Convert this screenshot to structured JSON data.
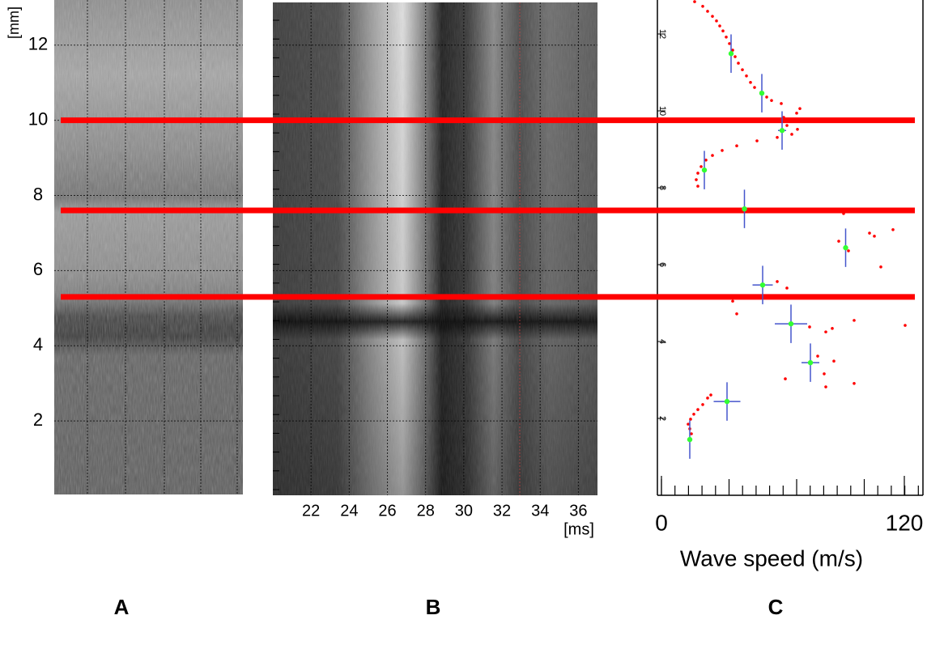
{
  "depth_axis": {
    "label": "[mm]",
    "ylim": [
      0,
      13.2
    ],
    "yticks": [
      2,
      4,
      6,
      8,
      10,
      12
    ]
  },
  "time_axis": {
    "label": "[ms]",
    "xlim": [
      20,
      37
    ],
    "xticks": [
      22,
      24,
      26,
      28,
      30,
      32,
      34,
      36
    ]
  },
  "boundaries": [
    10,
    7.6,
    5.3
  ],
  "speed_chart": {
    "xlabel": "Wave speed (m/s)",
    "xlim": [
      0,
      120
    ],
    "xticks": [
      0,
      120
    ],
    "ylim": [
      0,
      12.9
    ],
    "yticks": [
      2,
      4,
      6,
      8,
      10,
      12
    ],
    "point_color": "#ff0000",
    "estimate_color": "#33ff33",
    "error_color": "#4455cc",
    "points": [
      [
        16.4,
        12.84
      ],
      [
        20.4,
        12.72
      ],
      [
        22.8,
        12.59
      ],
      [
        25.2,
        12.46
      ],
      [
        27.2,
        12.34
      ],
      [
        28.8,
        12.21
      ],
      [
        30.4,
        12.08
      ],
      [
        32,
        11.92
      ],
      [
        33.6,
        11.75
      ],
      [
        35.2,
        11.58
      ],
      [
        36.4,
        11.41
      ],
      [
        38,
        11.24
      ],
      [
        40,
        11.07
      ],
      [
        42,
        10.91
      ],
      [
        44,
        10.74
      ],
      [
        46,
        10.61
      ],
      [
        49.2,
        10.48
      ],
      [
        52,
        10.36
      ],
      [
        54.4,
        10.27
      ],
      [
        59.2,
        10.19
      ],
      [
        68.4,
        10.06
      ],
      [
        66.8,
        9.94
      ],
      [
        60.4,
        9.83
      ],
      [
        56.4,
        9.73
      ],
      [
        62,
        9.62
      ],
      [
        67.2,
        9.52
      ],
      [
        64.4,
        9.39
      ],
      [
        57.2,
        9.31
      ],
      [
        47.2,
        9.22
      ],
      [
        37.2,
        9.09
      ],
      [
        30,
        8.97
      ],
      [
        25.2,
        8.84
      ],
      [
        22,
        8.72
      ],
      [
        19.6,
        8.55
      ],
      [
        18,
        8.38
      ],
      [
        17.2,
        8.21
      ],
      [
        18,
        8.04
      ],
      [
        90,
        7.33
      ],
      [
        102.8,
        6.82
      ],
      [
        105.2,
        6.74
      ],
      [
        114.4,
        6.91
      ],
      [
        87.6,
        6.61
      ],
      [
        92.4,
        6.36
      ],
      [
        108.4,
        5.94
      ],
      [
        57.2,
        5.56
      ],
      [
        62,
        5.39
      ],
      [
        49.2,
        5.14
      ],
      [
        35.2,
        5.05
      ],
      [
        37.2,
        4.72
      ],
      [
        95.2,
        4.55
      ],
      [
        120.4,
        4.42
      ],
      [
        73.2,
        4.38
      ],
      [
        81.2,
        4.25
      ],
      [
        84.4,
        4.34
      ],
      [
        77.2,
        3.62
      ],
      [
        85.2,
        3.49
      ],
      [
        61.2,
        3.03
      ],
      [
        80.4,
        3.16
      ],
      [
        81.2,
        2.82
      ],
      [
        95.2,
        2.91
      ],
      [
        24.4,
        2.61
      ],
      [
        22.8,
        2.53
      ],
      [
        20.4,
        2.36
      ],
      [
        18,
        2.23
      ],
      [
        16,
        2.11
      ],
      [
        14.4,
        1.98
      ],
      [
        13.2,
        1.85
      ],
      [
        14,
        1.73
      ],
      [
        14.8,
        1.6
      ]
    ],
    "estimates": [
      {
        "speed": 34.4,
        "depth": 11.49,
        "speed_error": 0,
        "depth_error": 0.5
      },
      {
        "speed": 49.6,
        "depth": 10.46,
        "speed_error": 0,
        "depth_error": 0.5
      },
      {
        "speed": 59.6,
        "depth": 9.49,
        "speed_error": 2,
        "depth_error": 0.5
      },
      {
        "speed": 21.2,
        "depth": 8.46,
        "speed_error": 0,
        "depth_error": 0.5
      },
      {
        "speed": 41,
        "depth": 7.45,
        "speed_error": 0,
        "depth_error": 0.5
      },
      {
        "speed": 91,
        "depth": 6.44,
        "speed_error": 0,
        "depth_error": 0.5
      },
      {
        "speed": 50,
        "depth": 5.47,
        "speed_error": 5,
        "depth_error": 0.5
      },
      {
        "speed": 64,
        "depth": 4.46,
        "speed_error": 8,
        "depth_error": 0.5
      },
      {
        "speed": 73.6,
        "depth": 3.45,
        "speed_error": 4.4,
        "depth_error": 0.5
      },
      {
        "speed": 32.4,
        "depth": 2.44,
        "speed_error": 6.6,
        "depth_error": 0.5
      },
      {
        "speed": 14,
        "depth": 1.45,
        "speed_error": 0,
        "depth_error": 0.5
      }
    ]
  },
  "panels": [
    {
      "label": "A"
    },
    {
      "label": "B"
    },
    {
      "label": "C"
    }
  ]
}
